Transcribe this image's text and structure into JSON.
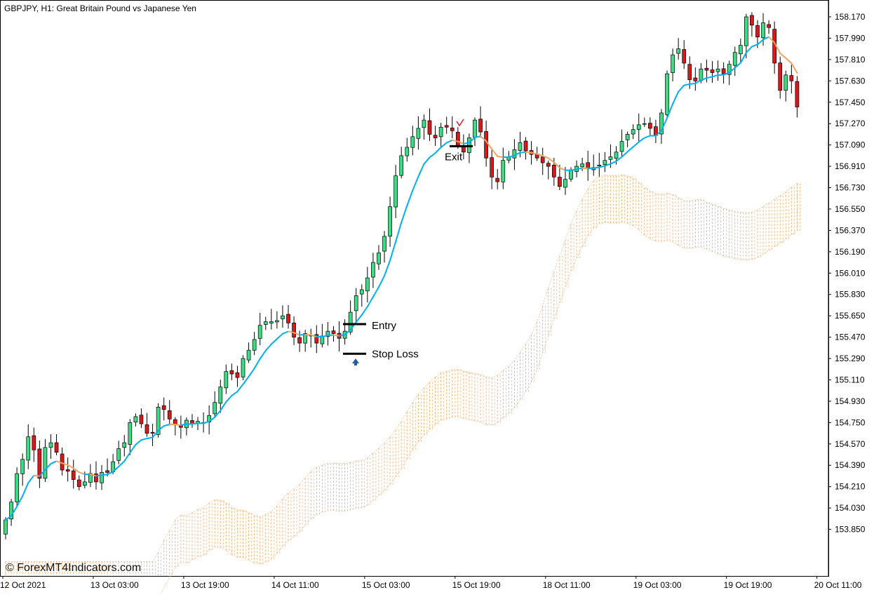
{
  "chart_data": {
    "type": "candlestick",
    "title": "GBPJPY, H1:  Great Britain Pound vs Japanese Yen",
    "symbol": "GBPJPY",
    "timeframe": "H1",
    "watermark": "© ForexMT4Indicators.com",
    "ylim": [
      153.73,
      158.26
    ],
    "y_ticks": [
      "158.170",
      "157.990",
      "157.810",
      "157.630",
      "157.450",
      "157.270",
      "157.090",
      "156.910",
      "156.730",
      "156.550",
      "156.370",
      "156.190",
      "156.010",
      "155.830",
      "155.650",
      "155.470",
      "155.290",
      "155.110",
      "154.930",
      "154.750",
      "154.570",
      "154.390",
      "154.210",
      "154.030",
      "153.850"
    ],
    "x_ticks": [
      "12 Oct 2021",
      "13 Oct 03:00",
      "13 Oct 19:00",
      "14 Oct 11:00",
      "15 Oct 03:00",
      "15 Oct 19:00",
      "18 Oct 11:00",
      "19 Oct 03:00",
      "19 Oct 19:00",
      "20 Oct 11:00"
    ],
    "x_tick_bar_index": [
      0,
      16,
      32,
      48,
      64,
      80,
      96,
      112,
      128,
      144
    ],
    "bars_close": [
      153.93,
      154.08,
      154.32,
      154.44,
      154.63,
      154.52,
      154.28,
      154.54,
      154.58,
      154.5,
      154.35,
      154.34,
      154.27,
      154.21,
      154.25,
      154.32,
      154.25,
      154.33,
      154.33,
      154.42,
      154.53,
      154.58,
      154.75,
      154.8,
      154.74,
      154.66,
      154.66,
      154.88,
      154.86,
      154.78,
      154.73,
      154.71,
      154.77,
      154.74,
      154.76,
      154.75,
      154.81,
      154.92,
      155.05,
      155.18,
      155.16,
      155.13,
      155.29,
      155.36,
      155.45,
      155.57,
      155.6,
      155.6,
      155.61,
      155.65,
      155.59,
      155.47,
      155.42,
      155.5,
      155.48,
      155.42,
      155.48,
      155.52,
      155.5,
      155.46,
      155.52,
      155.68,
      155.82,
      155.87,
      155.97,
      156.1,
      156.18,
      156.32,
      156.57,
      156.83,
      157.0,
      157.07,
      157.16,
      157.23,
      157.3,
      157.18,
      157.15,
      157.24,
      157.24,
      157.21,
      157.08,
      157.03,
      157.15,
      157.3,
      157.2,
      156.98,
      156.82,
      156.78,
      156.96,
      156.99,
      157.05,
      157.11,
      157.04,
      157.01,
      156.98,
      156.94,
      156.91,
      156.82,
      156.74,
      156.8,
      156.88,
      156.91,
      156.93,
      156.89,
      156.9,
      156.92,
      156.96,
      156.99,
      157.03,
      157.12,
      157.18,
      157.22,
      157.26,
      157.27,
      157.23,
      157.17,
      157.36,
      157.69,
      157.85,
      157.9,
      157.78,
      157.64,
      157.63,
      157.73,
      157.72,
      157.7,
      157.73,
      157.69,
      157.77,
      157.87,
      157.93,
      158.17,
      158.1,
      158.0,
      158.12,
      158.08,
      157.78,
      157.55,
      157.68,
      157.63,
      157.41
    ],
    "series": [
      {
        "name": "MA",
        "color_up": "#00b0f0",
        "color_down": "#f4a460"
      },
      {
        "name": "Cloud",
        "color": "#f4a460"
      }
    ],
    "annotations": {
      "entry": {
        "label": "Entry",
        "price": 155.58
      },
      "stop_loss": {
        "label": "Stop Loss",
        "price": 155.33
      },
      "exit": {
        "label": "Exit",
        "price": 157.08
      }
    },
    "colors": {
      "bull": "#3ddc84",
      "bear": "#d7191c",
      "wick": "#000000"
    },
    "grid": false
  }
}
